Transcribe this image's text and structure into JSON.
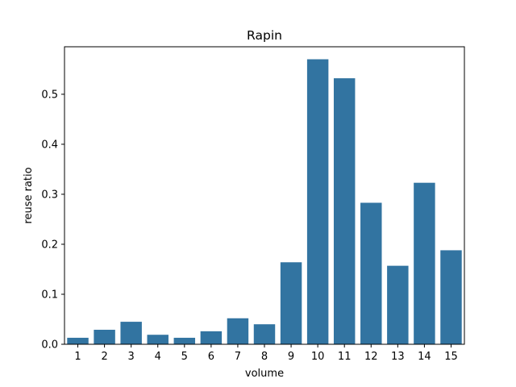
{
  "chart_data": {
    "type": "bar",
    "title": "Rapin",
    "xlabel": "volume",
    "ylabel": "reuse ratio",
    "categories": [
      "1",
      "2",
      "3",
      "4",
      "5",
      "6",
      "7",
      "8",
      "9",
      "10",
      "11",
      "12",
      "13",
      "14",
      "15"
    ],
    "values": [
      0.013,
      0.029,
      0.045,
      0.019,
      0.013,
      0.026,
      0.052,
      0.04,
      0.164,
      0.57,
      0.532,
      0.283,
      0.157,
      0.323,
      0.188
    ],
    "ylim": [
      0,
      0.595
    ],
    "yticks": [
      "0.0",
      "0.1",
      "0.2",
      "0.3",
      "0.4",
      "0.5"
    ],
    "bar_color": "#3274a1",
    "grid": false,
    "legend": "none"
  }
}
